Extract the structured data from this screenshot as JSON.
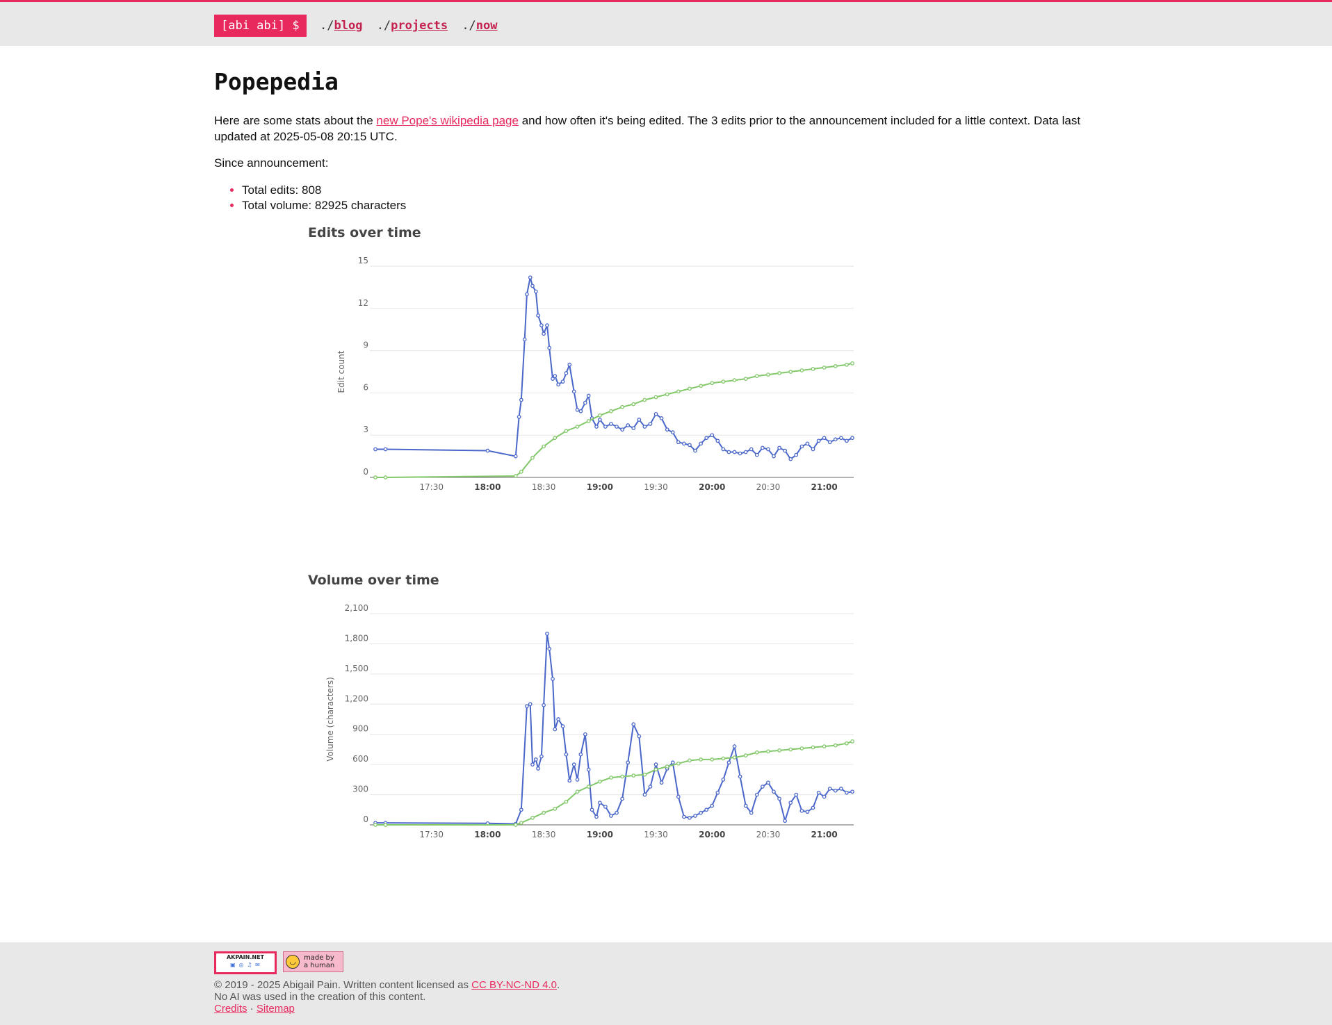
{
  "header": {
    "logo": "[abi abi] $",
    "nav": [
      {
        "prefix": "./",
        "label": "blog"
      },
      {
        "prefix": "./",
        "label": "projects"
      },
      {
        "prefix": "./",
        "label": "now"
      }
    ]
  },
  "page": {
    "title": "Popepedia",
    "intro_before": "Here are some stats about the ",
    "intro_link": "new Pope's wikipedia page",
    "intro_after": " and how often it's being edited. The 3 edits prior to the announcement included for a little context. Data last updated at 2025-05-08 20:15 UTC.",
    "since": "Since announcement:",
    "stats": [
      "Total edits: 808",
      "Total volume: 82925 characters"
    ]
  },
  "colors": {
    "accent": "#e8295e",
    "series_rate": "#4a67c9",
    "series_cumulative": "#82c86a",
    "grid": "#e6e6e6"
  },
  "chart_data": [
    {
      "type": "line",
      "title": "Edits over time",
      "xlabel": "",
      "ylabel": "Edit count",
      "ylim": [
        0,
        15
      ],
      "yticks": [
        "0",
        "3",
        "6",
        "9",
        "12",
        "15"
      ],
      "xticks": [
        {
          "label": "17:30",
          "t": 17.5,
          "bold": false
        },
        {
          "label": "18:00",
          "t": 18.0,
          "bold": true
        },
        {
          "label": "18:30",
          "t": 18.5,
          "bold": false
        },
        {
          "label": "19:00",
          "t": 19.0,
          "bold": true
        },
        {
          "label": "19:30",
          "t": 19.5,
          "bold": false
        },
        {
          "label": "20:00",
          "t": 20.0,
          "bold": true
        },
        {
          "label": "20:30",
          "t": 20.5,
          "bold": false
        },
        {
          "label": "21:00",
          "t": 21.0,
          "bold": true
        }
      ],
      "xlim": [
        17.0,
        21.25
      ],
      "grid": true,
      "series": [
        {
          "role": "rate",
          "x": [
            17.0,
            17.09,
            18.0,
            18.25,
            18.28,
            18.3,
            18.33,
            18.35,
            18.38,
            18.4,
            18.43,
            18.45,
            18.48,
            18.5,
            18.53,
            18.55,
            18.58,
            18.6,
            18.63,
            18.67,
            18.7,
            18.73,
            18.77,
            18.8,
            18.83,
            18.87,
            18.9,
            18.93,
            18.97,
            19.0,
            19.05,
            19.1,
            19.15,
            19.2,
            19.25,
            19.3,
            19.35,
            19.4,
            19.45,
            19.5,
            19.55,
            19.6,
            19.65,
            19.7,
            19.75,
            19.8,
            19.85,
            19.9,
            19.95,
            20.0,
            20.05,
            20.1,
            20.15,
            20.2,
            20.25,
            20.3,
            20.35,
            20.4,
            20.45,
            20.5,
            20.55,
            20.6,
            20.65,
            20.7,
            20.75,
            20.8,
            20.85,
            20.9,
            20.95,
            21.0,
            21.05,
            21.1,
            21.15,
            21.2,
            21.25
          ],
          "y": [
            2.0,
            2.0,
            1.9,
            1.5,
            4.3,
            5.5,
            9.8,
            13.0,
            14.2,
            13.6,
            13.2,
            11.5,
            10.8,
            10.2,
            10.8,
            9.2,
            7.0,
            7.2,
            6.6,
            6.8,
            7.4,
            8.0,
            6.1,
            4.8,
            4.7,
            5.3,
            5.8,
            4.2,
            3.6,
            4.1,
            3.6,
            3.8,
            3.6,
            3.4,
            3.7,
            3.5,
            4.1,
            3.6,
            3.8,
            4.5,
            4.2,
            3.4,
            3.2,
            2.5,
            2.4,
            2.3,
            1.9,
            2.4,
            2.8,
            3.0,
            2.6,
            2.0,
            1.8,
            1.8,
            1.7,
            1.8,
            2.0,
            1.6,
            2.1,
            2.0,
            1.5,
            2.1,
            1.9,
            1.3,
            1.6,
            2.2,
            2.4,
            2.0,
            2.6,
            2.8,
            2.5,
            2.7,
            2.8,
            2.6,
            2.8
          ]
        },
        {
          "role": "cumulative",
          "x": [
            17.0,
            17.09,
            18.25,
            18.3,
            18.4,
            18.5,
            18.6,
            18.7,
            18.8,
            18.9,
            19.0,
            19.1,
            19.2,
            19.3,
            19.4,
            19.5,
            19.6,
            19.7,
            19.8,
            19.9,
            20.0,
            20.1,
            20.2,
            20.3,
            20.4,
            20.5,
            20.6,
            20.7,
            20.8,
            20.9,
            21.0,
            21.1,
            21.2,
            21.25
          ],
          "y": [
            0.0,
            0.0,
            0.1,
            0.4,
            1.4,
            2.2,
            2.8,
            3.3,
            3.6,
            4.0,
            4.4,
            4.7,
            5.0,
            5.2,
            5.5,
            5.7,
            5.9,
            6.1,
            6.3,
            6.5,
            6.7,
            6.8,
            6.9,
            7.0,
            7.2,
            7.3,
            7.4,
            7.5,
            7.6,
            7.7,
            7.8,
            7.9,
            8.0,
            8.1
          ]
        }
      ]
    },
    {
      "type": "line",
      "title": "Volume over time",
      "xlabel": "",
      "ylabel": "Volume (characters)",
      "ylim": [
        0,
        2100
      ],
      "yticks": [
        "0",
        "300",
        "600",
        "900",
        "1,200",
        "1,500",
        "1,800",
        "2,100"
      ],
      "xticks": [
        {
          "label": "17:30",
          "t": 17.5,
          "bold": false
        },
        {
          "label": "18:00",
          "t": 18.0,
          "bold": true
        },
        {
          "label": "18:30",
          "t": 18.5,
          "bold": false
        },
        {
          "label": "19:00",
          "t": 19.0,
          "bold": true
        },
        {
          "label": "19:30",
          "t": 19.5,
          "bold": false
        },
        {
          "label": "20:00",
          "t": 20.0,
          "bold": true
        },
        {
          "label": "20:30",
          "t": 20.5,
          "bold": false
        },
        {
          "label": "21:00",
          "t": 21.0,
          "bold": true
        }
      ],
      "xlim": [
        17.0,
        21.25
      ],
      "grid": true,
      "series": [
        {
          "role": "rate",
          "x": [
            17.0,
            17.09,
            18.0,
            18.25,
            18.3,
            18.35,
            18.38,
            18.4,
            18.43,
            18.45,
            18.48,
            18.5,
            18.53,
            18.55,
            18.58,
            18.6,
            18.63,
            18.67,
            18.7,
            18.73,
            18.77,
            18.8,
            18.83,
            18.87,
            18.9,
            18.93,
            18.97,
            19.0,
            19.05,
            19.1,
            19.15,
            19.2,
            19.25,
            19.3,
            19.35,
            19.4,
            19.45,
            19.5,
            19.55,
            19.6,
            19.65,
            19.7,
            19.75,
            19.8,
            19.85,
            19.9,
            19.95,
            20.0,
            20.05,
            20.1,
            20.15,
            20.2,
            20.25,
            20.3,
            20.35,
            20.4,
            20.45,
            20.5,
            20.55,
            20.6,
            20.65,
            20.7,
            20.75,
            20.8,
            20.85,
            20.9,
            20.95,
            21.0,
            21.05,
            21.1,
            21.15,
            21.2,
            21.25
          ],
          "y": [
            20,
            20,
            15,
            10,
            150,
            1180,
            1200,
            600,
            650,
            560,
            680,
            1190,
            1900,
            1750,
            1450,
            950,
            1050,
            980,
            700,
            440,
            600,
            450,
            700,
            900,
            550,
            150,
            80,
            220,
            180,
            90,
            120,
            260,
            620,
            1000,
            880,
            300,
            380,
            600,
            420,
            560,
            620,
            280,
            80,
            70,
            90,
            120,
            150,
            190,
            320,
            450,
            620,
            780,
            480,
            190,
            120,
            300,
            380,
            420,
            330,
            260,
            40,
            220,
            300,
            140,
            130,
            170,
            320,
            280,
            360,
            340,
            360,
            320,
            330
          ]
        },
        {
          "role": "cumulative",
          "x": [
            17.0,
            17.09,
            18.25,
            18.3,
            18.4,
            18.5,
            18.6,
            18.7,
            18.8,
            18.9,
            19.0,
            19.1,
            19.2,
            19.3,
            19.4,
            19.5,
            19.6,
            19.7,
            19.8,
            19.9,
            20.0,
            20.1,
            20.2,
            20.3,
            20.4,
            20.5,
            20.6,
            20.7,
            20.8,
            20.9,
            21.0,
            21.1,
            21.2,
            21.25
          ],
          "y": [
            0,
            0,
            0,
            20,
            70,
            120,
            160,
            230,
            330,
            380,
            430,
            470,
            480,
            490,
            500,
            550,
            580,
            610,
            640,
            650,
            650,
            660,
            670,
            690,
            720,
            730,
            740,
            750,
            760,
            770,
            780,
            790,
            810,
            830
          ]
        }
      ]
    }
  ],
  "footer": {
    "badge1_title": "AKPAIN.NET",
    "badge1_sub": "▣ ◎ ♫ ✉",
    "badge2_line1": "made by",
    "badge2_line2": "a human",
    "copyright": "© 2019 - 2025 Abigail Pain. Written content licensed as ",
    "license_link": "CC BY-NC-ND 4.0",
    "period": ".",
    "no_ai": "No AI was used in the creation of this content.",
    "credits": "Credits",
    "sep": " · ",
    "sitemap": "Sitemap"
  }
}
